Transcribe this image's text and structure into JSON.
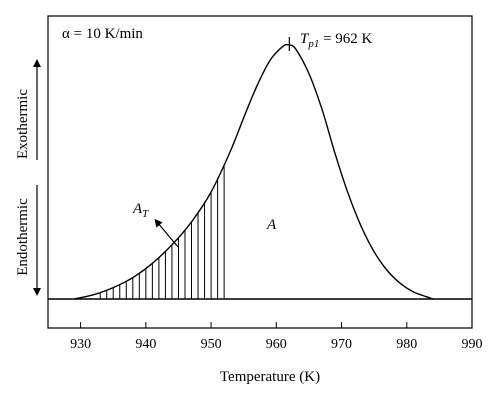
{
  "chart_data": {
    "type": "line",
    "title": "",
    "xlabel": "Temperature (K)",
    "ylabel": "",
    "xlim": [
      925,
      990
    ],
    "ylim": [
      -0.08,
      1.0
    ],
    "xticks": [
      930,
      940,
      950,
      960,
      970,
      980,
      990
    ],
    "grid": false,
    "legend": "none",
    "series": [
      {
        "values_description_hidden": null,
        "x": [
          929.0,
          932.0,
          935.0,
          938.0,
          941.0,
          944.0,
          947.0,
          950.0,
          953.0,
          955.0,
          957.0,
          959.0,
          961.0,
          962.0,
          963.0,
          965.0,
          967.0,
          969.0,
          971.0,
          973.0,
          975.0,
          977.0,
          979.0,
          981.0,
          983.0,
          984.0
        ],
        "y": [
          0.0,
          0.015,
          0.04,
          0.075,
          0.125,
          0.19,
          0.27,
          0.375,
          0.52,
          0.635,
          0.745,
          0.835,
          0.885,
          0.89,
          0.875,
          0.79,
          0.665,
          0.51,
          0.37,
          0.255,
          0.165,
          0.1,
          0.055,
          0.025,
          0.008,
          0.0
        ]
      }
    ],
    "shaded_region": {
      "x_start": 933,
      "x_end": 952.5,
      "style": "vertical-hatch"
    },
    "annotations": {
      "rate": "α = 10 K/min",
      "peak_label": "T",
      "peak_sub": "p1",
      "peak_value": " = 962 K",
      "partial_area": "A",
      "partial_area_sub": "T",
      "total_area": "A",
      "peak_x": 962
    },
    "side_labels": {
      "upper": "Exothermic",
      "lower": "Endothermic"
    }
  }
}
